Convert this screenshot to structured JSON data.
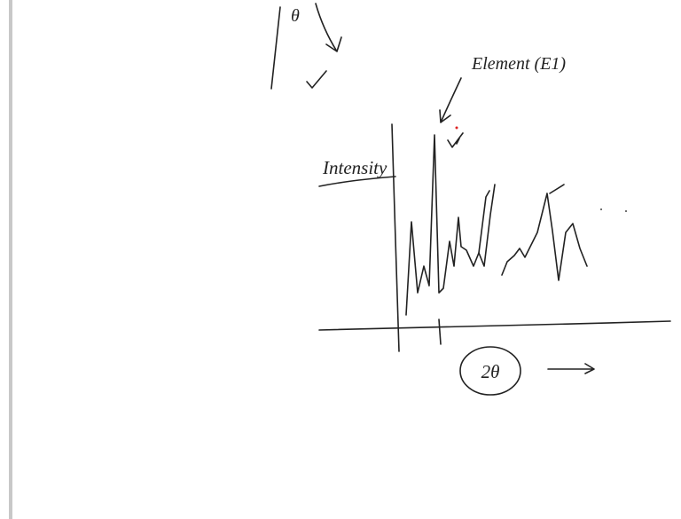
{
  "annotations": {
    "top_symbol": "θ",
    "element": "Element (E1)",
    "y_axis": "Intensity",
    "x_axis": "2θ"
  }
}
